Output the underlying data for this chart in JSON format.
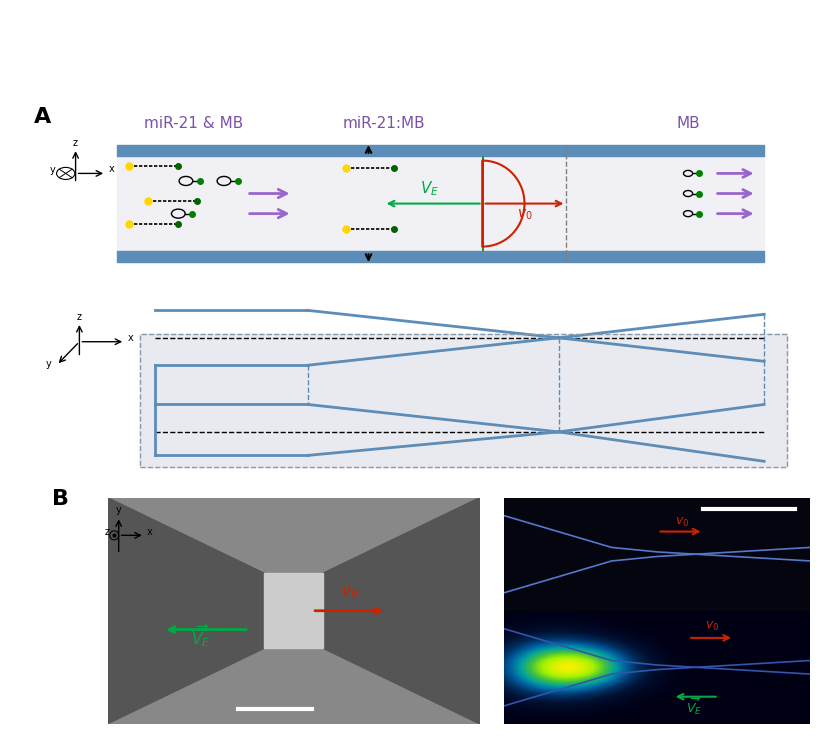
{
  "title_A": "A",
  "title_B": "B",
  "label_mir21_mb": "miR-21 & MB",
  "label_mir21_colon_mb": "miR-21:MB",
  "label_mb": "MB",
  "label_VE": "$V_E$",
  "label_v0": "$v_0$",
  "label_v0_top_right": "$v_0$",
  "label_VE_bottom_right": "$\\overrightarrow{V_E}$",
  "label_v0_bottom_right2": "$v_0$",
  "label_VE_bottom_right2": "$\\overrightarrow{V_E}$",
  "label_v0_B": "$v_0$",
  "label_VE_B": "$\\overrightarrow{V_E}$",
  "purple_color": "#7B52AB",
  "green_color": "#00AA44",
  "red_color": "#CC2200",
  "channel_color": "#5B8DB8",
  "channel_fill": "#F0F0F5",
  "bg_color": "#FFFFFF",
  "arrow_purple_color": "#9966CC",
  "dashed_line_color": "#8899AA"
}
